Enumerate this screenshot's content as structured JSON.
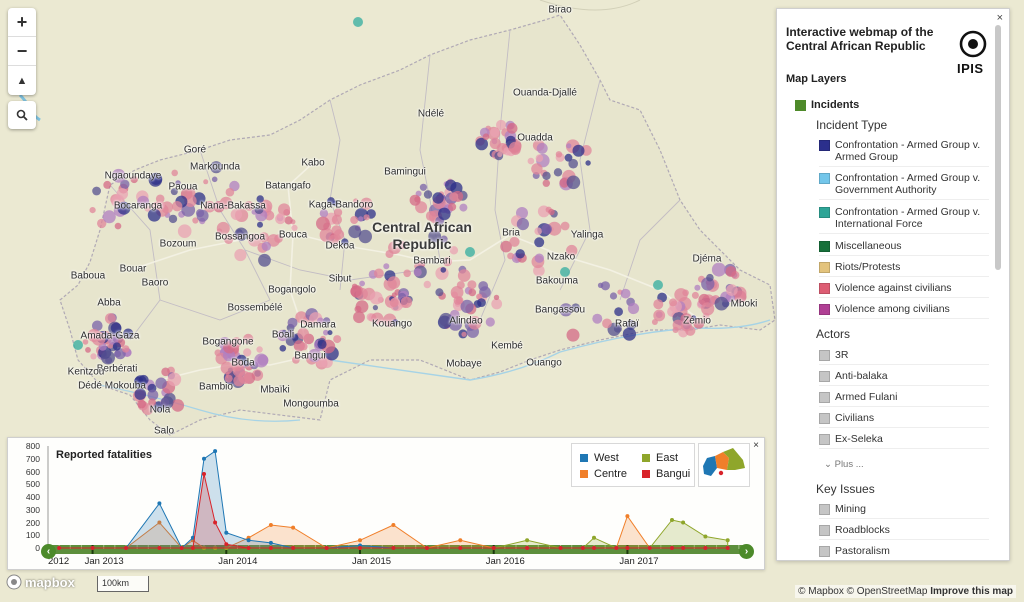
{
  "map": {
    "country_label_line1": "Central African",
    "country_label_line2": "Republic",
    "cities": [
      {
        "name": "Birao",
        "x": 560,
        "y": 10
      },
      {
        "name": "Ouanda-Djallé",
        "x": 545,
        "y": 93
      },
      {
        "name": "Ndélé",
        "x": 431,
        "y": 114
      },
      {
        "name": "Ouadda",
        "x": 535,
        "y": 138
      },
      {
        "name": "Goré",
        "x": 195,
        "y": 150
      },
      {
        "name": "Markounda",
        "x": 215,
        "y": 167
      },
      {
        "name": "Kabo",
        "x": 313,
        "y": 163
      },
      {
        "name": "Bamingui",
        "x": 405,
        "y": 172
      },
      {
        "name": "Ngaoundaye",
        "x": 133,
        "y": 176
      },
      {
        "name": "Paoua",
        "x": 183,
        "y": 187
      },
      {
        "name": "Batangafo",
        "x": 288,
        "y": 186
      },
      {
        "name": "Bocaranga",
        "x": 138,
        "y": 206
      },
      {
        "name": "Nana-Bakassa",
        "x": 233,
        "y": 206
      },
      {
        "name": "Kaga-Bandoro",
        "x": 341,
        "y": 205
      },
      {
        "name": "Bria",
        "x": 511,
        "y": 233
      },
      {
        "name": "Yalinga",
        "x": 587,
        "y": 235
      },
      {
        "name": "Bossangoa",
        "x": 240,
        "y": 237
      },
      {
        "name": "Bouca",
        "x": 293,
        "y": 235
      },
      {
        "name": "Bozoum",
        "x": 178,
        "y": 244
      },
      {
        "name": "Dekoa",
        "x": 340,
        "y": 246
      },
      {
        "name": "Sibut",
        "x": 340,
        "y": 279
      },
      {
        "name": "Djéma",
        "x": 707,
        "y": 259
      },
      {
        "name": "Nzako",
        "x": 561,
        "y": 257
      },
      {
        "name": "Bambari",
        "x": 432,
        "y": 261
      },
      {
        "name": "Baboua",
        "x": 88,
        "y": 276
      },
      {
        "name": "Bouar",
        "x": 133,
        "y": 269
      },
      {
        "name": "Baoro",
        "x": 155,
        "y": 283
      },
      {
        "name": "Bakouma",
        "x": 557,
        "y": 281
      },
      {
        "name": "Bogangolo",
        "x": 292,
        "y": 290
      },
      {
        "name": "Abba",
        "x": 109,
        "y": 303
      },
      {
        "name": "Mboki",
        "x": 744,
        "y": 304
      },
      {
        "name": "Bossembélé",
        "x": 255,
        "y": 308
      },
      {
        "name": "Rafaï",
        "x": 627,
        "y": 324
      },
      {
        "name": "Zémio",
        "x": 697,
        "y": 321
      },
      {
        "name": "Damara",
        "x": 318,
        "y": 325
      },
      {
        "name": "Kouango",
        "x": 392,
        "y": 324
      },
      {
        "name": "Alindao",
        "x": 466,
        "y": 321
      },
      {
        "name": "Bangassou",
        "x": 560,
        "y": 310
      },
      {
        "name": "Amada-Gaza",
        "x": 110,
        "y": 336
      },
      {
        "name": "Boali",
        "x": 283,
        "y": 335
      },
      {
        "name": "Bogangone",
        "x": 228,
        "y": 342
      },
      {
        "name": "Kembé",
        "x": 507,
        "y": 346
      },
      {
        "name": "Bangui",
        "x": 310,
        "y": 356
      },
      {
        "name": "Berbérati",
        "x": 117,
        "y": 369
      },
      {
        "name": "Ouango",
        "x": 544,
        "y": 363
      },
      {
        "name": "Mobaye",
        "x": 464,
        "y": 364
      },
      {
        "name": "Boda",
        "x": 243,
        "y": 363
      },
      {
        "name": "Kentzou",
        "x": 86,
        "y": 372
      },
      {
        "name": "Dédé Mokouba",
        "x": 112,
        "y": 386
      },
      {
        "name": "Bambio",
        "x": 216,
        "y": 387
      },
      {
        "name": "Mbaïki",
        "x": 275,
        "y": 390
      },
      {
        "name": "Mongoumba",
        "x": 311,
        "y": 404
      },
      {
        "name": "Nola",
        "x": 160,
        "y": 410
      },
      {
        "name": "Salo",
        "x": 164,
        "y": 431
      }
    ]
  },
  "controls": {
    "zoom_in": "+",
    "zoom_out": "−",
    "compass": "▲",
    "search_icon": "search-icon"
  },
  "panel": {
    "close": "×",
    "title": "Interactive webmap of the Central African Republic",
    "logo_text": "IPIS",
    "map_layers": "Map Layers",
    "incidents": {
      "label": "Incidents",
      "color": "#4e8a2a"
    },
    "incident_type_heading": "Incident Type",
    "incident_types": [
      {
        "label": "Confrontation - Armed Group v. Armed Group",
        "color": "#2b2f8c"
      },
      {
        "label": "Confrontation - Armed Group v. Government Authority",
        "color": "#73c6ea"
      },
      {
        "label": "Confrontation - Armed Group v. International Force",
        "color": "#2ea597"
      },
      {
        "label": "Miscellaneous",
        "color": "#17703a"
      },
      {
        "label": "Riots/Protests",
        "color": "#e3c37c"
      },
      {
        "label": "Violence against civilians",
        "color": "#dd5d73"
      },
      {
        "label": "Violence among civilians",
        "color": "#b03f94"
      }
    ],
    "actors_heading": "Actors",
    "actors": [
      {
        "label": "3R",
        "color": "#c5c5c5"
      },
      {
        "label": "Anti-balaka",
        "color": "#c5c5c5"
      },
      {
        "label": "Armed Fulani",
        "color": "#c5c5c5"
      },
      {
        "label": "Civilians",
        "color": "#c5c5c5"
      },
      {
        "label": "Ex-Seleka",
        "color": "#c5c5c5"
      }
    ],
    "plus": "Plus ...",
    "key_issues_heading": "Key Issues",
    "key_issues": [
      {
        "label": "Mining",
        "color": "#c5c5c5"
      },
      {
        "label": "Roadblocks",
        "color": "#c5c5c5"
      },
      {
        "label": "Pastoralism",
        "color": "#c5c5c5"
      }
    ]
  },
  "chart": {
    "title": "Reported fatalities",
    "close": "×",
    "legend": [
      {
        "name": "West",
        "color": "#1f77b4"
      },
      {
        "name": "East",
        "color": "#8fa62b"
      },
      {
        "name": "Centre",
        "color": "#f07f2a"
      },
      {
        "name": "Bangui",
        "color": "#d8232a"
      }
    ],
    "y_ticks": [
      "800",
      "700",
      "600",
      "500",
      "400",
      "300",
      "200",
      "100",
      "0"
    ],
    "x_ticks": [
      "2012",
      "Jan 2013",
      "Jan 2014",
      "Jan 2015",
      "Jan 2016",
      "Jan 2017"
    ],
    "nav_left": "‹",
    "nav_right": "›"
  },
  "chart_data": {
    "type": "area",
    "title": "Reported fatalities",
    "ylim": [
      0,
      800
    ],
    "x": [
      "2012-10",
      "2013-01",
      "2013-04",
      "2013-07",
      "2013-09",
      "2013-10",
      "2013-11",
      "2013-12",
      "2014-01",
      "2014-03",
      "2014-05",
      "2014-07",
      "2014-10",
      "2015-01",
      "2015-04",
      "2015-07",
      "2015-10",
      "2016-01",
      "2016-04",
      "2016-07",
      "2016-09",
      "2016-10",
      "2016-12",
      "2017-01",
      "2017-03",
      "2017-05",
      "2017-06",
      "2017-08",
      "2017-10"
    ],
    "series": [
      {
        "name": "West",
        "values": [
          0,
          0,
          0,
          350,
          0,
          80,
          700,
          760,
          120,
          60,
          40,
          0,
          0,
          20,
          0,
          0,
          0,
          0,
          0,
          0,
          0,
          0,
          0,
          0,
          0,
          0,
          0,
          0,
          0
        ]
      },
      {
        "name": "Centre",
        "values": [
          0,
          0,
          0,
          200,
          0,
          60,
          0,
          0,
          0,
          80,
          180,
          160,
          0,
          60,
          180,
          0,
          60,
          0,
          0,
          0,
          0,
          0,
          0,
          250,
          0,
          0,
          0,
          0,
          0
        ]
      },
      {
        "name": "East",
        "values": [
          0,
          0,
          0,
          0,
          0,
          0,
          0,
          0,
          0,
          0,
          0,
          0,
          0,
          0,
          0,
          0,
          0,
          0,
          60,
          0,
          0,
          80,
          0,
          0,
          0,
          220,
          200,
          90,
          60
        ]
      },
      {
        "name": "Bangui",
        "values": [
          0,
          0,
          0,
          0,
          0,
          0,
          580,
          200,
          30,
          0,
          0,
          0,
          0,
          0,
          0,
          0,
          0,
          0,
          0,
          0,
          0,
          0,
          0,
          0,
          0,
          0,
          0,
          0,
          0
        ]
      }
    ]
  },
  "footer": {
    "mapbox": "mapbox",
    "scale": "100km",
    "attribution_mapbox": "© Mapbox",
    "attribution_osm": "© OpenStreetMap",
    "improve": "Improve this map"
  }
}
